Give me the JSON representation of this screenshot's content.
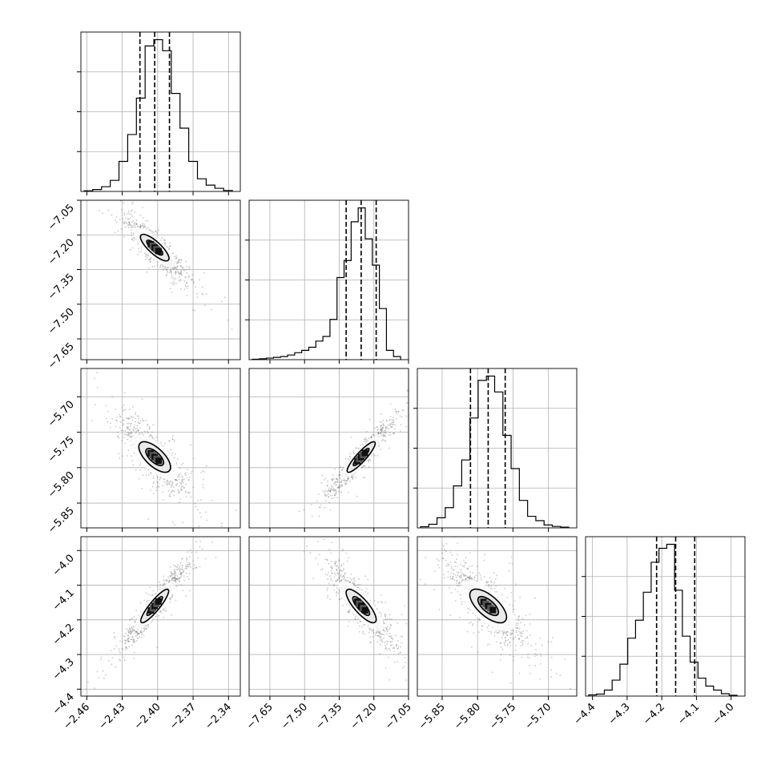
{
  "chart_data": {
    "type": "scatter",
    "parameters": [
      {
        "ticks": [
          "-2.46",
          "-2.43",
          "-2.40",
          "-2.37",
          "-2.34"
        ],
        "range": [
          -2.465,
          -2.33
        ],
        "quantiles": [
          -2.415,
          -2.4025,
          -2.39
        ],
        "hist": [
          0.4,
          1.2,
          3,
          7,
          19,
          36,
          59,
          92,
          96,
          89,
          62,
          40,
          19,
          8,
          4,
          2,
          0.6
        ]
      },
      {
        "ticks": [
          "-7.65",
          "-7.50",
          "-7.35",
          "-7.20",
          "-7.05"
        ],
        "range": [
          -7.74,
          -7.05
        ],
        "quantiles": [
          -7.32,
          -7.255,
          -7.19
        ],
        "hist": [
          0.3,
          0.6,
          1,
          1.5,
          2,
          3,
          4.5,
          6,
          8,
          12,
          15,
          26,
          53,
          64,
          89,
          98,
          78,
          61,
          33,
          6,
          2
        ]
      },
      {
        "ticks": [
          "-5.85",
          "-5.80",
          "-5.75",
          "-5.70"
        ],
        "range": [
          -5.885,
          -5.66
        ],
        "quantiles": [
          -5.81,
          -5.785,
          -5.761
        ],
        "hist": [
          0.8,
          2.5,
          7,
          14,
          29,
          47,
          76,
          102,
          105,
          94,
          64,
          41,
          19,
          8,
          5,
          2,
          1,
          0.5
        ]
      },
      {
        "ticks": [
          "-4.4",
          "-4.3",
          "-4.2",
          "-4.1",
          "-4.0"
        ],
        "range": [
          -4.42,
          -3.96
        ],
        "quantiles": [
          -4.215,
          -4.16,
          -4.105
        ],
        "hist": [
          0.6,
          1,
          3,
          8,
          16,
          29,
          38,
          52,
          67,
          74,
          76,
          53,
          30,
          17,
          9,
          5,
          3,
          1.2,
          0.4
        ]
      }
    ],
    "correlations": {
      "1_0": -0.9,
      "2_0": -0.8,
      "2_1": 0.95,
      "3_0": 0.95,
      "3_1": -0.9,
      "3_2": -0.8
    }
  }
}
